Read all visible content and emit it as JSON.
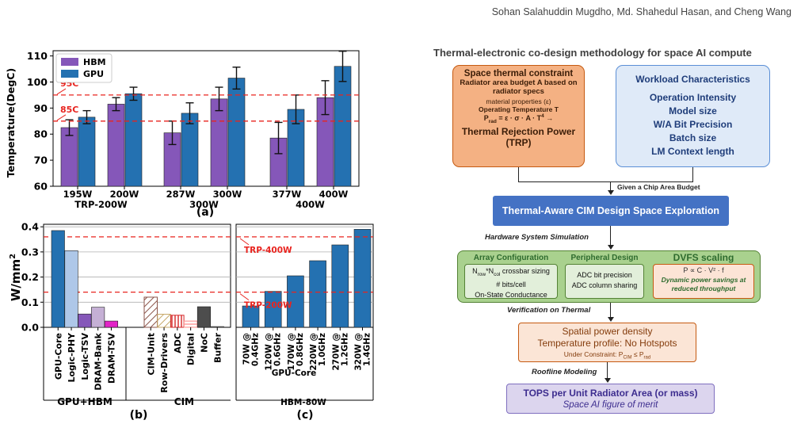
{
  "header": "Sohan Salahuddin Mugdho, Md. Shahedul Hasan, and Cheng Wang",
  "charts": [
    {
      "id": "a",
      "type": "bar",
      "ylabel": "Temperature(DegC)",
      "ylim": [
        60,
        112
      ],
      "yticks": [
        60,
        70,
        80,
        90,
        100,
        110
      ],
      "legend": [
        {
          "name": "HBM",
          "color": "#8557b9"
        },
        {
          "name": "GPU",
          "color": "#2471b1"
        }
      ],
      "groups": [
        {
          "label": "TRP-200W",
          "pairs": [
            {
              "tick": "195W",
              "hbm": 82.5,
              "hbm_err": 3,
              "gpu": 86.5,
              "gpu_err": 2.5
            },
            {
              "tick": "200W",
              "hbm": 91.5,
              "hbm_err": 2.5,
              "gpu": 95.5,
              "gpu_err": 2.5
            }
          ]
        },
        {
          "label": "300W",
          "pairs": [
            {
              "tick": "287W",
              "hbm": 80.5,
              "hbm_err": 4.5,
              "gpu": 88,
              "gpu_err": 4
            },
            {
              "tick": "300W",
              "hbm": 93.5,
              "hbm_err": 4.5,
              "gpu": 101.5,
              "gpu_err": 4.2
            }
          ]
        },
        {
          "label": "400W",
          "pairs": [
            {
              "tick": "377W",
              "hbm": 78.5,
              "hbm_err": 6,
              "gpu": 89.5,
              "gpu_err": 5.5
            },
            {
              "tick": "400W",
              "hbm": 94,
              "hbm_err": 6.5,
              "gpu": 106,
              "gpu_err": 5.8
            }
          ]
        }
      ],
      "reference_lines": [
        {
          "value": 95,
          "label": "95C"
        },
        {
          "value": 85,
          "label": "85C"
        }
      ],
      "panel_label": "(a)"
    },
    {
      "id": "b",
      "type": "bar",
      "ylabel": "W/mm",
      "ylabel_sup": "2",
      "ylim": [
        0,
        0.41
      ],
      "yticks": [
        0.0,
        0.1,
        0.2,
        0.3,
        0.4
      ],
      "ytick_labels": [
        "0.0",
        "0.1",
        "0.2",
        "0.3",
        "0.4"
      ],
      "groups": [
        {
          "label": "GPU+HBM",
          "bars": [
            {
              "name": "GPU-Core",
              "value": 0.385,
              "color": "#2471b1"
            },
            {
              "name": "Logic-PHY",
              "value": 0.305,
              "color": "#aec7e8"
            },
            {
              "name": "Logic-TSV",
              "value": 0.053,
              "color": "#8557b9"
            },
            {
              "name": "DRAM-Bank",
              "value": 0.08,
              "color": "#c5b0d5"
            },
            {
              "name": "DRAM-TSV",
              "value": 0.025,
              "color": "#e223c7"
            }
          ]
        },
        {
          "label": "CIM",
          "bars": [
            {
              "name": "CIM-Unit",
              "value": 0.12,
              "color": "#8c564b",
              "hatch": "diag"
            },
            {
              "name": "Row-Drivers",
              "value": 0.052,
              "color": "#c7a96b",
              "hatch": "diag"
            },
            {
              "name": "ADC",
              "value": 0.048,
              "color": "#d62728",
              "hatch": "vert"
            },
            {
              "name": "Digital",
              "value": 0.025,
              "color": "#ff9896",
              "hatch": "horiz"
            },
            {
              "name": "NoC",
              "value": 0.082,
              "color": "#4d4d4d"
            },
            {
              "name": "Buffer",
              "value": 0.003,
              "color": "#7f7f7f"
            }
          ]
        }
      ],
      "reference_lines": [
        {
          "value": 0.36
        },
        {
          "value": 0.14
        }
      ],
      "panel_label": "(b)"
    },
    {
      "id": "c",
      "type": "bar",
      "xlabel": "GPU-Core",
      "bottom_label": "HBM-80W",
      "ylim": [
        0,
        0.41
      ],
      "categories": [
        "70W @\n0.4GHz",
        "120W @\n0.6GHz",
        "170W @\n0.8GHz",
        "220W @\n1.0GHz",
        "270W @\n1.2GHz",
        "320W @\n1.4GHz"
      ],
      "values": [
        0.085,
        0.143,
        0.205,
        0.265,
        0.328,
        0.39
      ],
      "bar_color": "#2471b1",
      "reference_lines": [
        {
          "value": 0.36,
          "label": "TRP-400W"
        },
        {
          "value": 0.14,
          "label": "TRP-200W"
        }
      ],
      "panel_label": "(c)"
    }
  ],
  "flow": {
    "title": "Thermal-electronic co-design methodology for space AI compute",
    "thermal_box": {
      "title": "Space thermal constraint",
      "sub": "Radiator area budget A based on radiator specs",
      "line1": "material properties (ε)",
      "line2": "Operating Temperature T",
      "formula": "P",
      "formula_sub": "rad",
      "formula_rest": " = ε · σ · A · T",
      "formula_sup": "4",
      "formula_arrow": " →",
      "trp1": "Thermal Rejection Power",
      "trp2": "(TRP)"
    },
    "workload_box": {
      "title": "Workload Characteristics",
      "items": [
        "Operation Intensity",
        "Model size",
        "W/A Bit Precision",
        "Batch size",
        "LM Context length"
      ]
    },
    "given_label": "Given a Chip Area Budget",
    "dse_box": "Thermal-Aware CIM Design Space Exploration",
    "hw_sim_label": "Hardware System Simulation",
    "array_config": {
      "title": "Array Configuration",
      "l1a": "N",
      "l1a_sub": "row",
      "l1b": "*N",
      "l1b_sub": "col",
      "l1c": " crossbar sizing",
      "l2": "# bits/cell",
      "l3": "On-State Conductance"
    },
    "peripheral": {
      "title": "Peripheral Design",
      "l1": "ADC bit precision",
      "l2": "ADC column sharing"
    },
    "dvfs": {
      "title": "DVFS scaling",
      "formula": "P ∝ C · V² · f",
      "l1": "Dynamic power savings at",
      "l2": "reduced throughput"
    },
    "verif_label": "Verification on Thermal",
    "spatial_box": {
      "l1": "Spatial power density",
      "l2": "Temperature profile: No Hotspots",
      "l3a": "Under Constraint: P",
      "l3a_sub": "CIM",
      "l3b": " ≤ P",
      "l3b_sub": "rad"
    },
    "roofline_label": "Roofline Modeling",
    "tops_box": {
      "l1": "TOPS per Unit Radiator Area (or mass)",
      "l2": "Space AI figure of merit"
    }
  }
}
